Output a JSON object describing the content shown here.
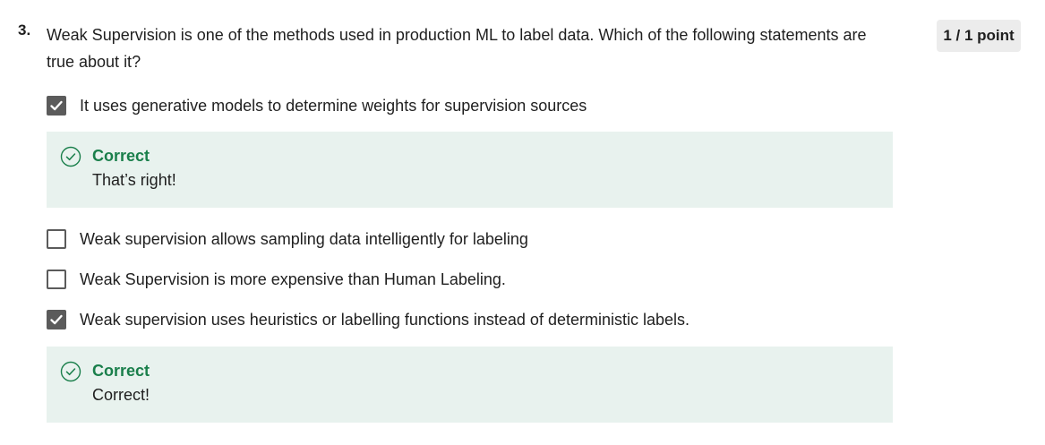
{
  "question": {
    "number": "3.",
    "text": "Weak Supervision is one of the methods used in production ML to label data. Which of the following statements are true about it?",
    "points": "1 / 1 point"
  },
  "options": [
    {
      "label": "It uses generative models to determine weights for supervision sources",
      "checked": true,
      "feedback": {
        "title": "Correct",
        "text": "That’s right!"
      }
    },
    {
      "label": "Weak supervision allows sampling data intelligently for labeling",
      "checked": false
    },
    {
      "label": "Weak Supervision is more expensive than Human Labeling.",
      "checked": false
    },
    {
      "label": "Weak supervision uses heuristics or labelling functions instead of deterministic labels.",
      "checked": true,
      "feedback": {
        "title": "Correct",
        "text": "Correct!"
      }
    }
  ],
  "icons": {
    "checkbox_checked": "checkmark-icon",
    "feedback": "check-circle-icon"
  },
  "colors": {
    "correct_text": "#1a7f4b",
    "feedback_bg": "#e8f2ee",
    "checkbox": "#5b5b5b",
    "points_bg": "#ececec"
  }
}
